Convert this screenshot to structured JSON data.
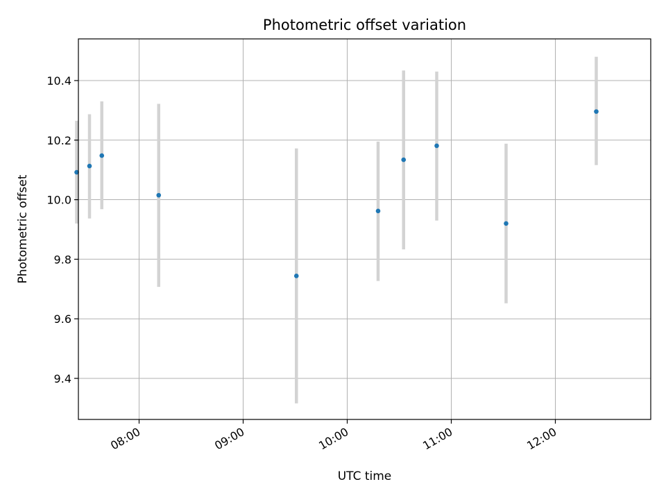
{
  "chart_data": {
    "type": "scatter",
    "title": "Photometric offset variation",
    "xlabel": "UTC time",
    "ylabel": "Photometric offset",
    "xlim_minutes": [
      445.0,
      775.0
    ],
    "ylim": [
      9.262,
      10.54
    ],
    "grid": true,
    "x_ticks": [
      {
        "minutes": 480,
        "label": "08:00"
      },
      {
        "minutes": 540,
        "label": "09:00"
      },
      {
        "minutes": 600,
        "label": "10:00"
      },
      {
        "minutes": 660,
        "label": "11:00"
      },
      {
        "minutes": 720,
        "label": "12:00"
      }
    ],
    "y_ticks": [
      {
        "value": 9.4,
        "label": "9.4"
      },
      {
        "value": 9.6,
        "label": "9.6"
      },
      {
        "value": 9.8,
        "label": "9.8"
      },
      {
        "value": 10.0,
        "label": "10.0"
      },
      {
        "value": 10.2,
        "label": "10.2"
      },
      {
        "value": 10.4,
        "label": "10.4"
      }
    ],
    "points": [
      {
        "time": "07:24",
        "minutes": 444.0,
        "y": 10.092,
        "err_low": 9.92,
        "err_high": 10.265
      },
      {
        "time": "07:31",
        "minutes": 451.4,
        "y": 10.113,
        "err_low": 9.937,
        "err_high": 10.287
      },
      {
        "time": "07:38",
        "minutes": 458.5,
        "y": 10.148,
        "err_low": 9.968,
        "err_high": 10.33
      },
      {
        "time": "08:11",
        "minutes": 491.3,
        "y": 10.015,
        "err_low": 9.707,
        "err_high": 10.322
      },
      {
        "time": "09:30",
        "minutes": 570.7,
        "y": 9.744,
        "err_low": 9.316,
        "err_high": 10.172
      },
      {
        "time": "10:18",
        "minutes": 617.8,
        "y": 9.962,
        "err_low": 9.727,
        "err_high": 10.195
      },
      {
        "time": "10:33",
        "minutes": 632.5,
        "y": 10.134,
        "err_low": 9.833,
        "err_high": 10.434
      },
      {
        "time": "10:52",
        "minutes": 651.6,
        "y": 10.181,
        "err_low": 9.93,
        "err_high": 10.43
      },
      {
        "time": "11:32",
        "minutes": 691.6,
        "y": 9.92,
        "err_low": 9.652,
        "err_high": 10.188
      },
      {
        "time": "12:24",
        "minutes": 743.6,
        "y": 10.296,
        "err_low": 10.116,
        "err_high": 10.48
      }
    ],
    "colors": {
      "marker": "#1f77b4",
      "errorbar": "#d3d3d3",
      "grid": "#b0b0b0",
      "axes": "#000000"
    }
  }
}
